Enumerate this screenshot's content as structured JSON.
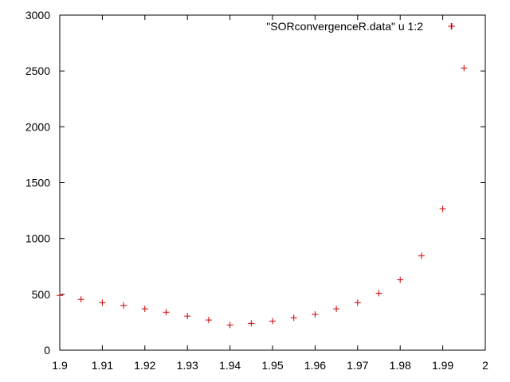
{
  "chart_data": {
    "type": "scatter",
    "title": "",
    "xlabel": "",
    "ylabel": "",
    "xlim": [
      1.9,
      2.0
    ],
    "ylim": [
      0,
      3000
    ],
    "xticks": [
      "1.9",
      "1.91",
      "1.92",
      "1.93",
      "1.94",
      "1.95",
      "1.96",
      "1.97",
      "1.98",
      "1.99",
      "2"
    ],
    "yticks": [
      "0",
      "500",
      "1000",
      "1500",
      "2000",
      "2500",
      "3000"
    ],
    "grid": false,
    "legend_position": "top-right",
    "series": [
      {
        "name": "\"SORconvergenceR.data\" u 1:2",
        "color": "#cc0000",
        "marker": "plus",
        "x": [
          1.9,
          1.905,
          1.91,
          1.915,
          1.92,
          1.925,
          1.93,
          1.935,
          1.94,
          1.945,
          1.95,
          1.955,
          1.96,
          1.965,
          1.97,
          1.975,
          1.98,
          1.985,
          1.99,
          1.992,
          1.995
        ],
        "y": [
          490,
          455,
          425,
          400,
          370,
          340,
          305,
          270,
          225,
          240,
          260,
          290,
          320,
          370,
          425,
          510,
          630,
          845,
          1265,
          2900,
          2525
        ]
      }
    ]
  }
}
